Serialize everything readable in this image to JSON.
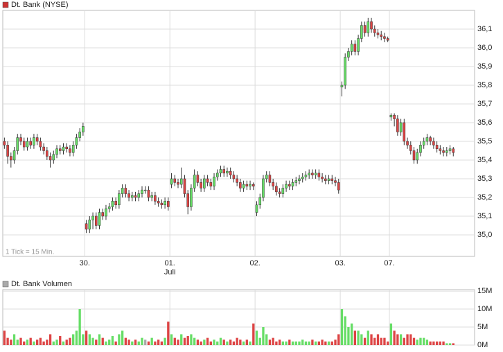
{
  "chart_data": [
    {
      "type": "candlestick",
      "legend": "Dt. Bank (NYSE)",
      "legend_color": "#cc3333",
      "note": "1 Tick = 15 Min.",
      "up_color": "#66dd66",
      "down_color": "#dd4444",
      "grid": true,
      "xlim": [
        0,
        144
      ],
      "ylim": [
        34.885,
        36.2
      ],
      "xticks": [
        {
          "value": 25,
          "label": "30."
        },
        {
          "value": 51,
          "label": "01."
        },
        {
          "value": 77,
          "label": "02."
        },
        {
          "value": 103,
          "label": "03."
        },
        {
          "value": 118,
          "label": "07."
        }
      ],
      "x_sublabels": [
        {
          "value": 51,
          "label": "Juli"
        }
      ],
      "yticks": [
        {
          "value": 35.0,
          "label": "35,0"
        },
        {
          "value": 35.1,
          "label": "35,1"
        },
        {
          "value": 35.2,
          "label": "35,2"
        },
        {
          "value": 35.3,
          "label": "35,3"
        },
        {
          "value": 35.4,
          "label": "35,4"
        },
        {
          "value": 35.5,
          "label": "35,5"
        },
        {
          "value": 35.6,
          "label": "35,6"
        },
        {
          "value": 35.7,
          "label": "35,7"
        },
        {
          "value": 35.8,
          "label": "35,8"
        },
        {
          "value": 35.9,
          "label": "35,9"
        },
        {
          "value": 36.0,
          "label": "36,0"
        },
        {
          "value": 36.1,
          "label": "36,1"
        }
      ],
      "ohlc": [
        [
          35.5,
          35.52,
          35.46,
          35.48
        ],
        [
          35.48,
          35.5,
          35.38,
          35.42
        ],
        [
          35.42,
          35.44,
          35.36,
          35.4
        ],
        [
          35.4,
          35.47,
          35.38,
          35.45
        ],
        [
          35.45,
          35.54,
          35.43,
          35.52
        ],
        [
          35.52,
          35.54,
          35.48,
          35.5
        ],
        [
          35.5,
          35.52,
          35.45,
          35.47
        ],
        [
          35.47,
          35.52,
          35.45,
          35.5
        ],
        [
          35.5,
          35.52,
          35.46,
          35.48
        ],
        [
          35.48,
          35.54,
          35.46,
          35.52
        ],
        [
          35.52,
          35.54,
          35.48,
          35.5
        ],
        [
          35.5,
          35.52,
          35.45,
          35.47
        ],
        [
          35.47,
          35.49,
          35.43,
          35.45
        ],
        [
          35.45,
          35.47,
          35.4,
          35.42
        ],
        [
          35.42,
          35.44,
          35.36,
          35.4
        ],
        [
          35.4,
          35.45,
          35.38,
          35.43
        ],
        [
          35.43,
          35.48,
          35.41,
          35.46
        ],
        [
          35.46,
          35.48,
          35.43,
          35.45
        ],
        [
          35.45,
          35.49,
          35.43,
          35.47
        ],
        [
          35.47,
          35.49,
          35.44,
          35.46
        ],
        [
          35.46,
          35.48,
          35.42,
          35.44
        ],
        [
          35.44,
          35.5,
          35.42,
          35.48
        ],
        [
          35.48,
          35.54,
          35.46,
          35.52
        ],
        [
          35.52,
          35.57,
          35.5,
          35.55
        ],
        [
          35.55,
          35.6,
          35.53,
          35.58
        ],
        [
          35.06,
          35.08,
          35.01,
          35.03
        ],
        [
          35.03,
          35.1,
          35.01,
          35.08
        ],
        [
          35.08,
          35.12,
          35.03,
          35.1
        ],
        [
          35.1,
          35.12,
          35.03,
          35.05
        ],
        [
          35.05,
          35.14,
          35.03,
          35.12
        ],
        [
          35.12,
          35.14,
          35.08,
          35.1
        ],
        [
          35.1,
          35.16,
          35.08,
          35.14
        ],
        [
          35.14,
          35.17,
          35.12,
          35.15
        ],
        [
          35.15,
          35.2,
          35.13,
          35.18
        ],
        [
          35.18,
          35.2,
          35.14,
          35.16
        ],
        [
          35.16,
          35.24,
          35.14,
          35.22
        ],
        [
          35.22,
          35.27,
          35.2,
          35.25
        ],
        [
          35.25,
          35.27,
          35.2,
          35.22
        ],
        [
          35.22,
          35.24,
          35.18,
          35.2
        ],
        [
          35.2,
          35.23,
          35.18,
          35.21
        ],
        [
          35.21,
          35.23,
          35.18,
          35.2
        ],
        [
          35.2,
          35.24,
          35.18,
          35.22
        ],
        [
          35.22,
          35.26,
          35.2,
          35.24
        ],
        [
          35.24,
          35.26,
          35.22,
          35.24
        ],
        [
          35.24,
          35.26,
          35.18,
          35.2
        ],
        [
          35.2,
          35.23,
          35.18,
          35.21
        ],
        [
          35.21,
          35.23,
          35.16,
          35.18
        ],
        [
          35.18,
          35.2,
          35.15,
          35.17
        ],
        [
          35.17,
          35.19,
          35.14,
          35.16
        ],
        [
          35.16,
          35.2,
          35.14,
          35.18
        ],
        [
          35.18,
          35.2,
          35.13,
          35.15
        ],
        [
          35.27,
          35.33,
          35.25,
          35.3
        ],
        [
          35.3,
          35.32,
          35.26,
          35.28
        ],
        [
          35.28,
          35.3,
          35.25,
          35.27
        ],
        [
          35.27,
          35.36,
          35.25,
          35.3
        ],
        [
          35.3,
          35.32,
          35.2,
          35.22
        ],
        [
          35.22,
          35.24,
          35.11,
          35.15
        ],
        [
          35.15,
          35.27,
          35.13,
          35.25
        ],
        [
          35.25,
          35.35,
          35.23,
          35.32
        ],
        [
          35.32,
          35.34,
          35.26,
          35.28
        ],
        [
          35.28,
          35.3,
          35.23,
          35.25
        ],
        [
          35.25,
          35.32,
          35.23,
          35.3
        ],
        [
          35.3,
          35.32,
          35.26,
          35.28
        ],
        [
          35.28,
          35.3,
          35.24,
          35.26
        ],
        [
          35.26,
          35.33,
          35.24,
          35.31
        ],
        [
          35.31,
          35.35,
          35.29,
          35.33
        ],
        [
          35.33,
          35.37,
          35.31,
          35.35
        ],
        [
          35.35,
          35.37,
          35.31,
          35.33
        ],
        [
          35.33,
          35.36,
          35.31,
          35.34
        ],
        [
          35.34,
          35.36,
          35.3,
          35.32
        ],
        [
          35.32,
          35.34,
          35.28,
          35.3
        ],
        [
          35.3,
          35.32,
          35.26,
          35.28
        ],
        [
          35.28,
          35.3,
          35.23,
          35.25
        ],
        [
          35.25,
          35.29,
          35.23,
          35.27
        ],
        [
          35.27,
          35.29,
          35.24,
          35.26
        ],
        [
          35.26,
          35.29,
          35.24,
          35.27
        ],
        [
          35.27,
          35.28,
          35.24,
          35.26
        ],
        [
          35.12,
          35.18,
          35.1,
          35.16
        ],
        [
          35.16,
          35.22,
          35.14,
          35.2
        ],
        [
          35.2,
          35.32,
          35.18,
          35.3
        ],
        [
          35.3,
          35.34,
          35.28,
          35.32
        ],
        [
          35.32,
          35.34,
          35.26,
          35.28
        ],
        [
          35.28,
          35.3,
          35.24,
          35.26
        ],
        [
          35.26,
          35.28,
          35.21,
          35.23
        ],
        [
          35.23,
          35.25,
          35.2,
          35.22
        ],
        [
          35.22,
          35.27,
          35.2,
          35.25
        ],
        [
          35.25,
          35.29,
          35.23,
          35.27
        ],
        [
          35.27,
          35.29,
          35.24,
          35.26
        ],
        [
          35.26,
          35.3,
          35.24,
          35.28
        ],
        [
          35.28,
          35.31,
          35.26,
          35.29
        ],
        [
          35.29,
          35.32,
          35.27,
          35.3
        ],
        [
          35.3,
          35.33,
          35.28,
          35.31
        ],
        [
          35.31,
          35.34,
          35.29,
          35.32
        ],
        [
          35.32,
          35.35,
          35.3,
          35.33
        ],
        [
          35.33,
          35.35,
          35.3,
          35.32
        ],
        [
          35.32,
          35.35,
          35.3,
          35.33
        ],
        [
          35.33,
          35.35,
          35.29,
          35.31
        ],
        [
          35.31,
          35.33,
          35.28,
          35.3
        ],
        [
          35.3,
          35.32,
          35.27,
          35.29
        ],
        [
          35.29,
          35.32,
          35.27,
          35.3
        ],
        [
          35.3,
          35.32,
          35.27,
          35.29
        ],
        [
          35.29,
          35.31,
          35.26,
          35.28
        ],
        [
          35.28,
          35.3,
          35.22,
          35.24
        ],
        [
          35.79,
          35.82,
          35.74,
          35.8
        ],
        [
          35.8,
          35.97,
          35.78,
          35.95
        ],
        [
          35.95,
          36.0,
          35.93,
          35.98
        ],
        [
          35.98,
          36.04,
          35.96,
          36.02
        ],
        [
          36.02,
          36.04,
          35.96,
          35.98
        ],
        [
          35.98,
          36.07,
          35.96,
          36.05
        ],
        [
          36.05,
          36.14,
          36.03,
          36.12
        ],
        [
          36.12,
          36.14,
          36.06,
          36.08
        ],
        [
          36.08,
          36.16,
          36.06,
          36.14
        ],
        [
          36.14,
          36.16,
          36.08,
          36.1
        ],
        [
          36.1,
          36.12,
          36.06,
          36.08
        ],
        [
          36.08,
          36.1,
          36.05,
          36.07
        ],
        [
          36.07,
          36.09,
          36.04,
          36.06
        ],
        [
          36.06,
          36.08,
          36.03,
          36.05
        ],
        [
          36.05,
          36.06,
          36.03,
          36.04
        ],
        [
          35.63,
          35.65,
          35.61,
          35.64
        ],
        [
          35.64,
          35.65,
          35.58,
          35.62
        ],
        [
          35.62,
          35.64,
          35.53,
          35.55
        ],
        [
          35.55,
          35.62,
          35.53,
          35.6
        ],
        [
          35.6,
          35.62,
          35.48,
          35.5
        ],
        [
          35.5,
          35.52,
          35.46,
          35.48
        ],
        [
          35.48,
          35.5,
          35.43,
          35.45
        ],
        [
          35.45,
          35.47,
          35.38,
          35.4
        ],
        [
          35.4,
          35.46,
          35.38,
          35.44
        ],
        [
          35.44,
          35.5,
          35.42,
          35.48
        ],
        [
          35.48,
          35.52,
          35.46,
          35.5
        ],
        [
          35.5,
          35.54,
          35.48,
          35.52
        ],
        [
          35.52,
          35.53,
          35.48,
          35.5
        ],
        [
          35.5,
          35.52,
          35.46,
          35.48
        ],
        [
          35.48,
          35.5,
          35.44,
          35.46
        ],
        [
          35.46,
          35.48,
          35.43,
          35.45
        ],
        [
          35.45,
          35.47,
          35.42,
          35.44
        ],
        [
          35.44,
          35.47,
          35.42,
          35.45
        ],
        [
          35.45,
          35.48,
          35.43,
          35.46
        ],
        [
          35.46,
          35.47,
          35.42,
          35.44
        ]
      ]
    },
    {
      "type": "bar",
      "legend": "Dt. Bank Volumen",
      "legend_color": "#aaaaaa",
      "flat_color": "#aaaaaa",
      "grid": true,
      "xlim": [
        0,
        144
      ],
      "ylim": [
        0,
        15.4
      ],
      "yticks": [
        {
          "value": 0,
          "label": "0M"
        },
        {
          "value": 5,
          "label": "5M"
        },
        {
          "value": 10,
          "label": "10M"
        },
        {
          "value": 15,
          "label": "15M"
        }
      ],
      "values": [
        4,
        2,
        1.5,
        3,
        1.5,
        2,
        1,
        1.5,
        2,
        1,
        1.5,
        2,
        1,
        1.5,
        3,
        1,
        1.5,
        2.5,
        1,
        1.5,
        2,
        3,
        4,
        10,
        3,
        4,
        3,
        2,
        1.5,
        3,
        2,
        1,
        1.5,
        2.5,
        1,
        3,
        4,
        2,
        1.5,
        1,
        1.5,
        1,
        2,
        1.5,
        1,
        2,
        1,
        1.5,
        1,
        2,
        6.5,
        3,
        2,
        1.5,
        3,
        2,
        2.5,
        3,
        2,
        1.5,
        1,
        1.5,
        2,
        1,
        1.5,
        1,
        2,
        1.5,
        1,
        1.5,
        1,
        2,
        1.5,
        1,
        1.5,
        1,
        6,
        4,
        2,
        5,
        3,
        1.5,
        2,
        1,
        1.5,
        1,
        1,
        1.5,
        1,
        1,
        1,
        1.5,
        1,
        1,
        1.5,
        1,
        1,
        1.5,
        1,
        1,
        1,
        1.5,
        3,
        10,
        8,
        5,
        6,
        4,
        4,
        3,
        2,
        4,
        3,
        2,
        3,
        2,
        2,
        1,
        6,
        4,
        3,
        3,
        2,
        3,
        3,
        2,
        1.5,
        2,
        2,
        1.5,
        1,
        1,
        1,
        1,
        1,
        0.5,
        0.5,
        0.5
      ]
    }
  ]
}
